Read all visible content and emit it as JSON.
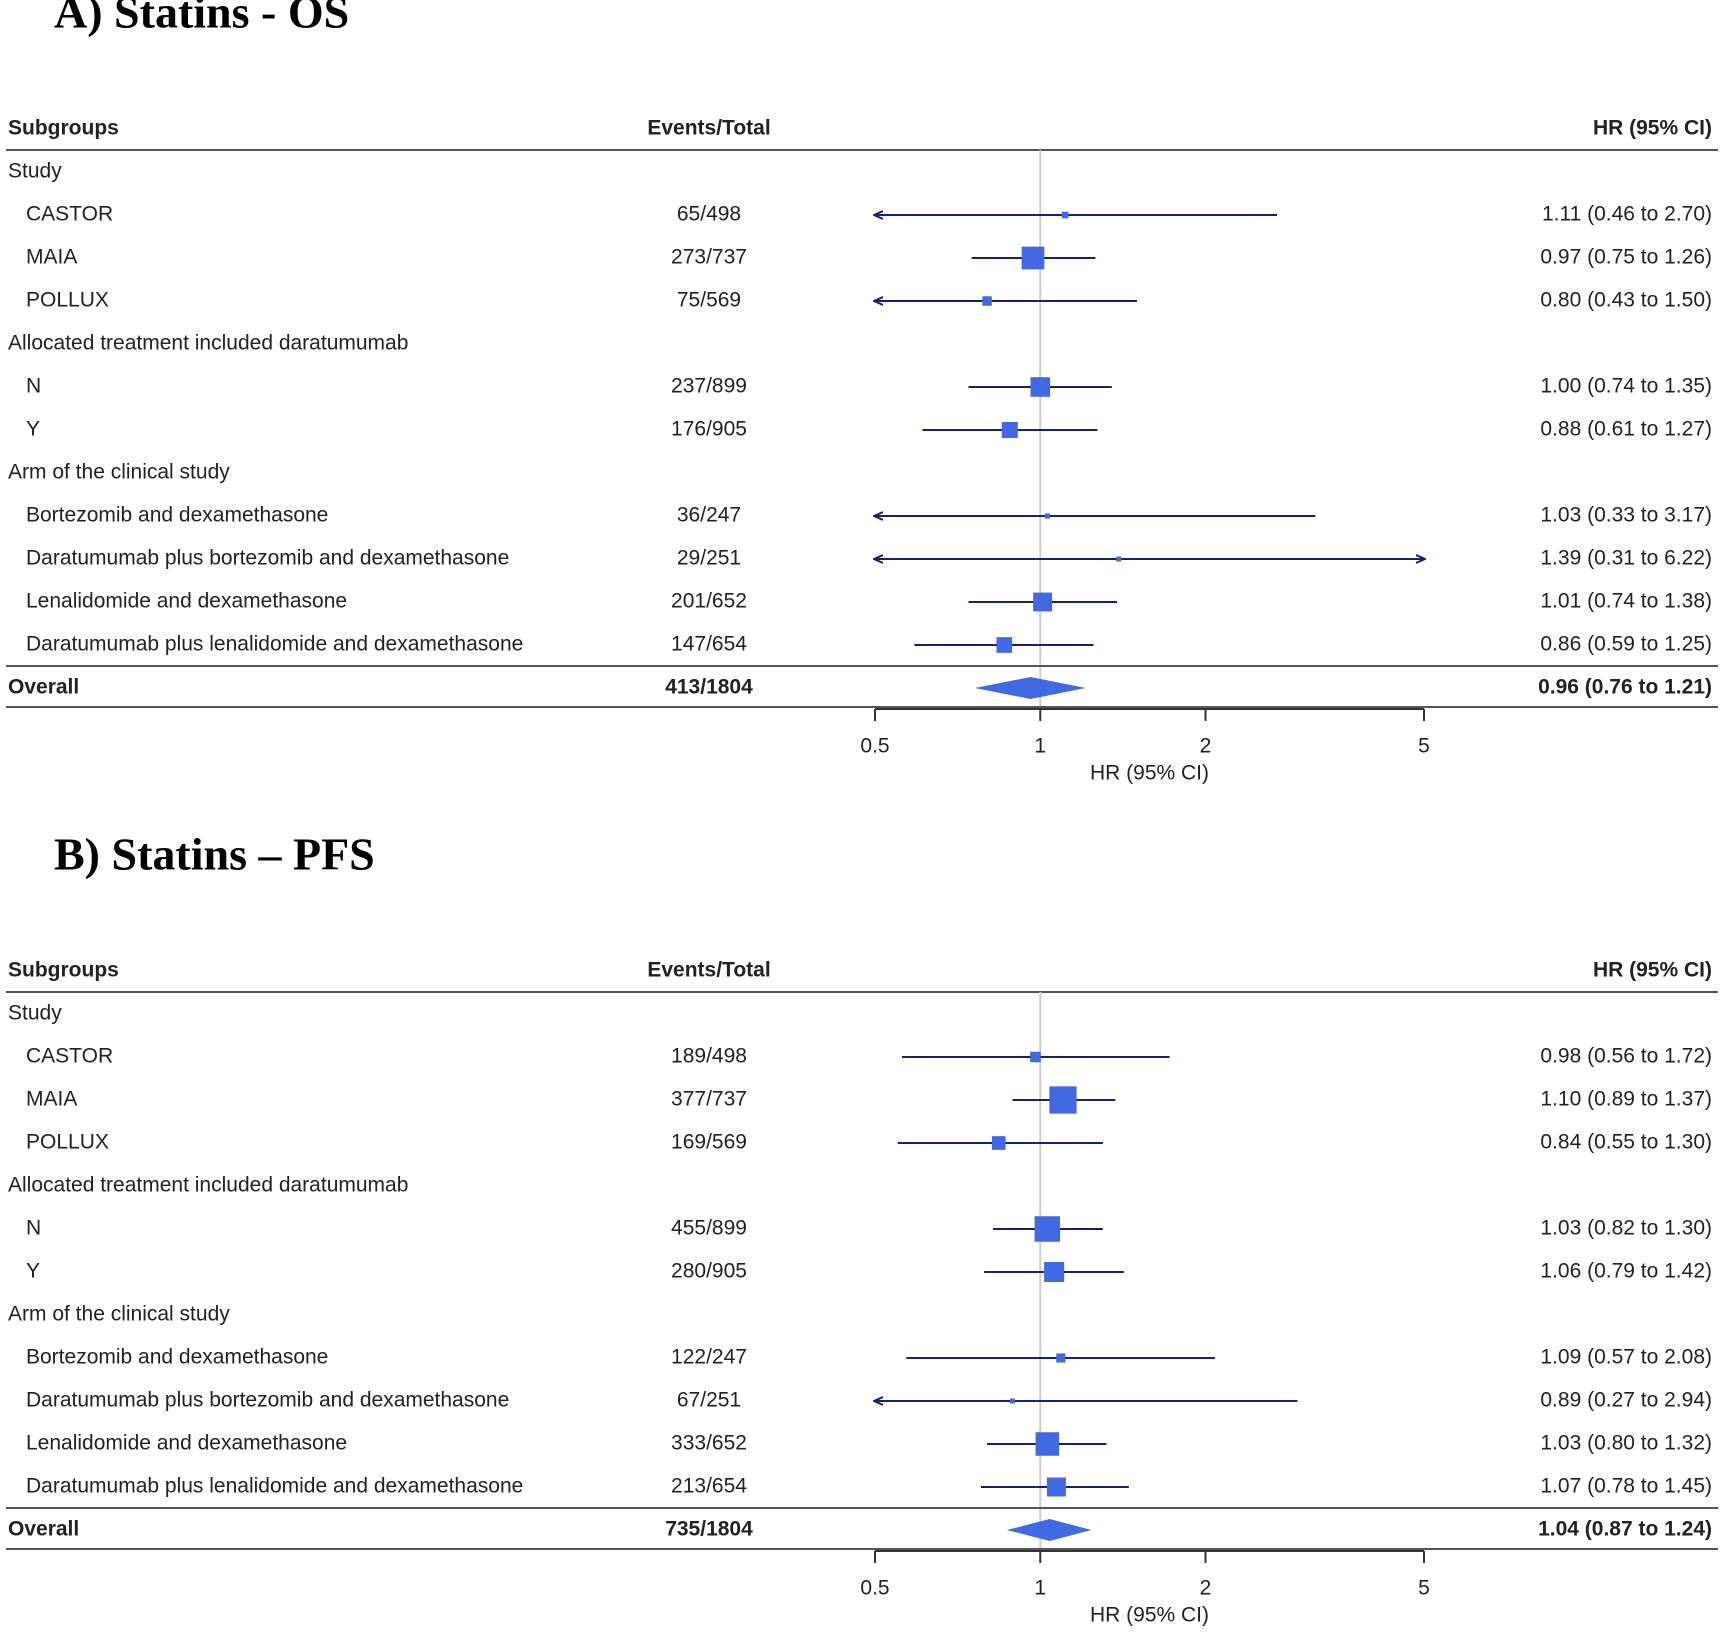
{
  "chart_data": [
    {
      "type": "forest",
      "title": "A)  Statins - OS",
      "columns": [
        "Subgroups",
        "Events/Total",
        "HR (95% CI)"
      ],
      "xlabel": "HR (95% CI)",
      "log_x": true,
      "xlim": [
        0.5,
        5
      ],
      "xticks": [
        0.5,
        1,
        2,
        5
      ],
      "reference": 1,
      "box_color": "#4169e1",
      "line_color": "#1a1f6e",
      "groups": [
        {
          "name": "Study",
          "rows": [
            {
              "label": "CASTOR",
              "events": "65/498",
              "hr": 1.11,
              "lo": 0.46,
              "hi": 2.7,
              "hr_text": "1.11 (0.46 to 2.70)"
            },
            {
              "label": "MAIA",
              "events": "273/737",
              "hr": 0.97,
              "lo": 0.75,
              "hi": 1.26,
              "hr_text": "0.97 (0.75 to 1.26)"
            },
            {
              "label": "POLLUX",
              "events": "75/569",
              "hr": 0.8,
              "lo": 0.43,
              "hi": 1.5,
              "hr_text": "0.80 (0.43 to 1.50)"
            }
          ]
        },
        {
          "name": "Allocated treatment included daratumumab",
          "rows": [
            {
              "label": "N",
              "events": "237/899",
              "hr": 1.0,
              "lo": 0.74,
              "hi": 1.35,
              "hr_text": "1.00 (0.74 to 1.35)"
            },
            {
              "label": "Y",
              "events": "176/905",
              "hr": 0.88,
              "lo": 0.61,
              "hi": 1.27,
              "hr_text": "0.88 (0.61 to 1.27)"
            }
          ]
        },
        {
          "name": "Arm of the clinical study",
          "rows": [
            {
              "label": "Bortezomib and dexamethasone",
              "events": "36/247",
              "hr": 1.03,
              "lo": 0.33,
              "hi": 3.17,
              "hr_text": "1.03 (0.33 to 3.17)"
            },
            {
              "label": "Daratumumab plus bortezomib and dexamethasone",
              "events": "29/251",
              "hr": 1.39,
              "lo": 0.31,
              "hi": 6.22,
              "hr_text": "1.39 (0.31 to 6.22)"
            },
            {
              "label": "Lenalidomide and dexamethasone",
              "events": "201/652",
              "hr": 1.01,
              "lo": 0.74,
              "hi": 1.38,
              "hr_text": "1.01 (0.74 to 1.38)"
            },
            {
              "label": "Daratumumab plus lenalidomide and dexamethasone",
              "events": "147/654",
              "hr": 0.86,
              "lo": 0.59,
              "hi": 1.25,
              "hr_text": "0.86 (0.59 to 1.25)"
            }
          ]
        }
      ],
      "overall": {
        "label": "Overall",
        "events": "413/1804",
        "hr": 0.96,
        "lo": 0.76,
        "hi": 1.21,
        "hr_text": "0.96 (0.76 to 1.21)"
      }
    },
    {
      "type": "forest",
      "title": "B)  Statins – PFS",
      "columns": [
        "Subgroups",
        "Events/Total",
        "HR (95% CI)"
      ],
      "xlabel": "HR (95% CI)",
      "log_x": true,
      "xlim": [
        0.5,
        5
      ],
      "xticks": [
        0.5,
        1,
        2,
        5
      ],
      "reference": 1,
      "box_color": "#4169e1",
      "line_color": "#1a1f6e",
      "groups": [
        {
          "name": "Study",
          "rows": [
            {
              "label": "CASTOR",
              "events": "189/498",
              "hr": 0.98,
              "lo": 0.56,
              "hi": 1.72,
              "hr_text": "0.98 (0.56 to 1.72)"
            },
            {
              "label": "MAIA",
              "events": "377/737",
              "hr": 1.1,
              "lo": 0.89,
              "hi": 1.37,
              "hr_text": "1.10 (0.89 to 1.37)"
            },
            {
              "label": "POLLUX",
              "events": "169/569",
              "hr": 0.84,
              "lo": 0.55,
              "hi": 1.3,
              "hr_text": "0.84 (0.55 to 1.30)"
            }
          ]
        },
        {
          "name": "Allocated treatment included daratumumab",
          "rows": [
            {
              "label": "N",
              "events": "455/899",
              "hr": 1.03,
              "lo": 0.82,
              "hi": 1.3,
              "hr_text": "1.03 (0.82 to 1.30)"
            },
            {
              "label": "Y",
              "events": "280/905",
              "hr": 1.06,
              "lo": 0.79,
              "hi": 1.42,
              "hr_text": "1.06 (0.79 to 1.42)"
            }
          ]
        },
        {
          "name": "Arm of the clinical study",
          "rows": [
            {
              "label": "Bortezomib and dexamethasone",
              "events": "122/247",
              "hr": 1.09,
              "lo": 0.57,
              "hi": 2.08,
              "hr_text": "1.09 (0.57 to 2.08)"
            },
            {
              "label": "Daratumumab plus bortezomib and dexamethasone",
              "events": "67/251",
              "hr": 0.89,
              "lo": 0.27,
              "hi": 2.94,
              "hr_text": "0.89 (0.27 to 2.94)"
            },
            {
              "label": "Lenalidomide and dexamethasone",
              "events": "333/652",
              "hr": 1.03,
              "lo": 0.8,
              "hi": 1.32,
              "hr_text": "1.03 (0.80 to 1.32)"
            },
            {
              "label": "Daratumumab plus lenalidomide and dexamethasone",
              "events": "213/654",
              "hr": 1.07,
              "lo": 0.78,
              "hi": 1.45,
              "hr_text": "1.07 (0.78 to 1.45)"
            }
          ]
        }
      ],
      "overall": {
        "label": "Overall",
        "events": "735/1804",
        "hr": 1.04,
        "lo": 0.87,
        "hi": 1.24,
        "hr_text": "1.04 (0.87 to 1.24)"
      }
    }
  ]
}
